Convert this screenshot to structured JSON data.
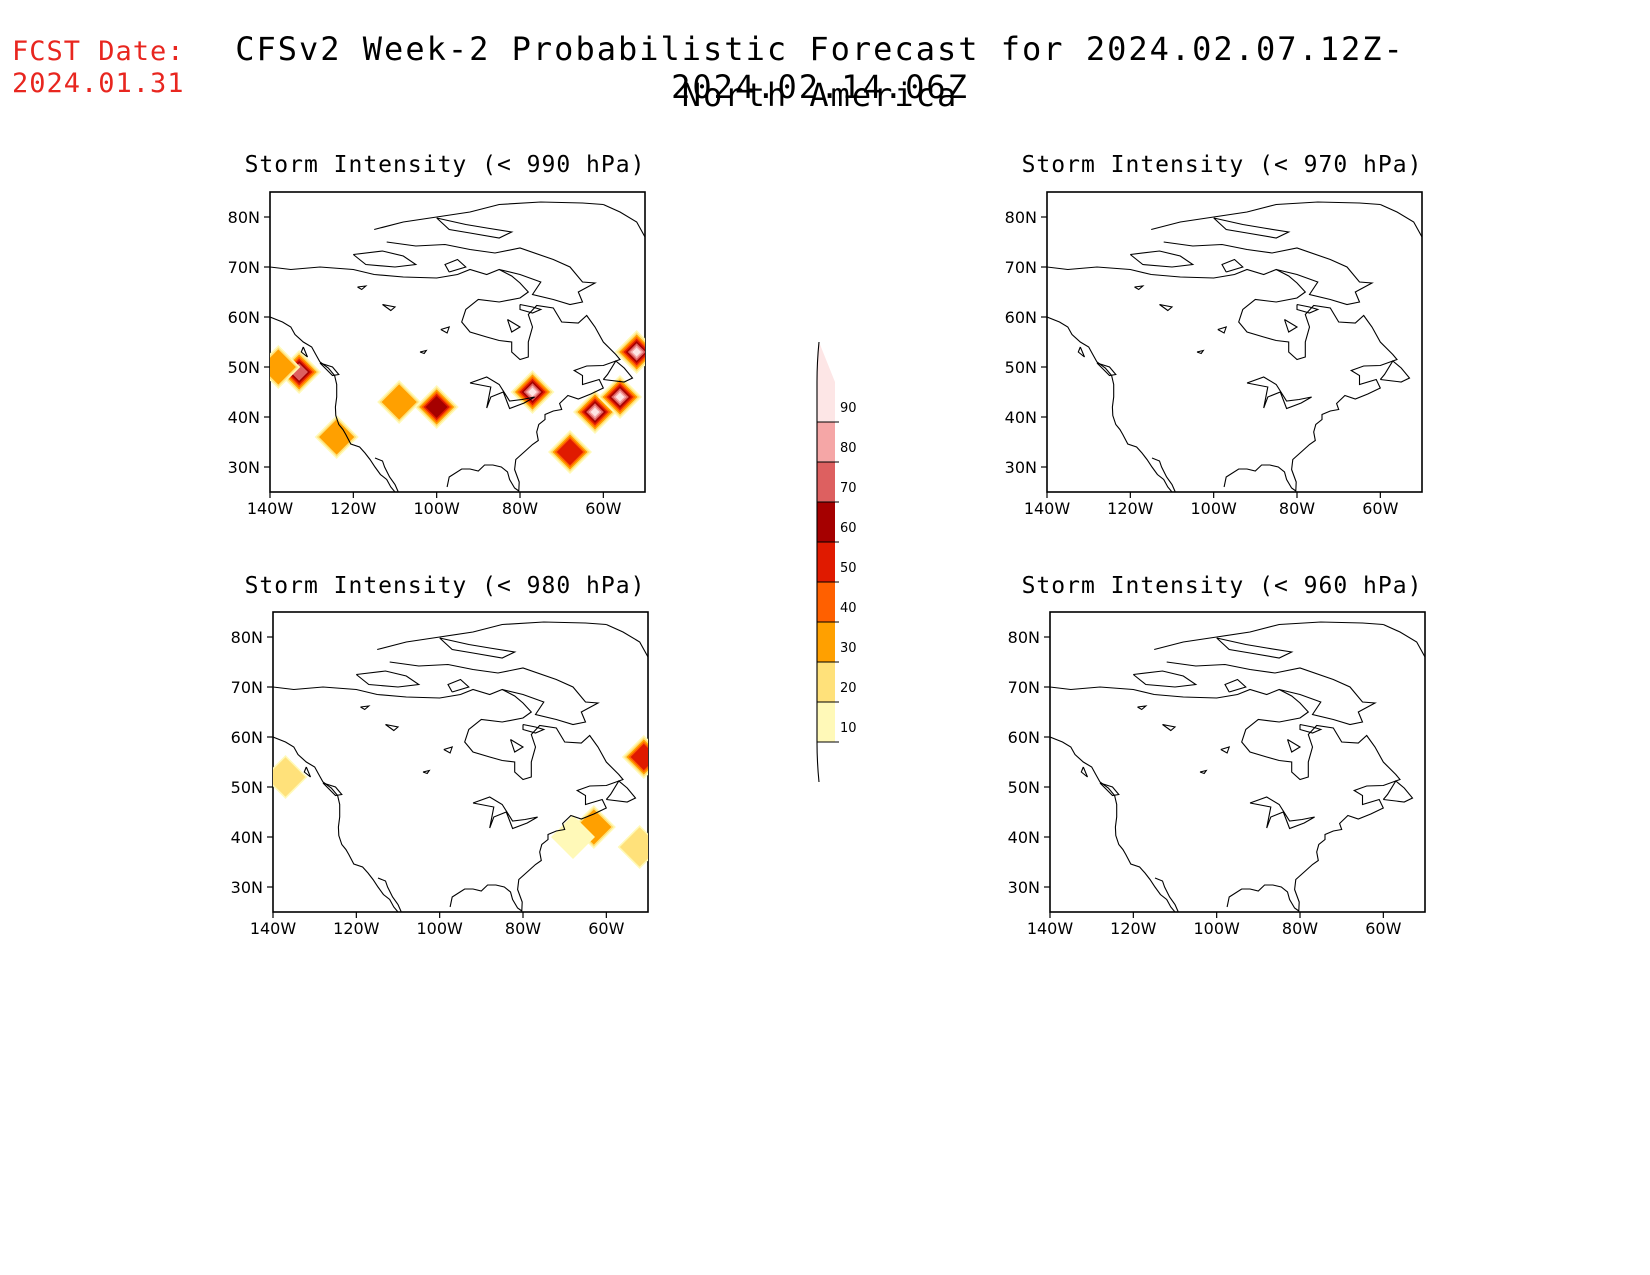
{
  "header": {
    "fcst_date_label": "FCST Date:",
    "fcst_date_value": "2024.01.31",
    "title": "CFSv2 Week-2 Probabilistic Forecast for 2024.02.07.12Z-2024.02.14.06Z",
    "subtitle": "North America"
  },
  "axes": {
    "lat_labels": [
      "80N",
      "70N",
      "60N",
      "50N",
      "40N",
      "30N"
    ],
    "lon_labels": [
      "140W",
      "120W",
      "100W",
      "80W",
      "60W"
    ]
  },
  "panels": [
    {
      "id": "p990",
      "title": "Storm Intensity (< 990 hPa)"
    },
    {
      "id": "p970",
      "title": "Storm Intensity (< 970 hPa)"
    },
    {
      "id": "p980",
      "title": "Storm Intensity (< 980 hPa)"
    },
    {
      "id": "p960",
      "title": "Storm Intensity (< 960 hPa)"
    }
  ],
  "colorbar": {
    "levels": [
      "10",
      "20",
      "30",
      "40",
      "50",
      "60",
      "70",
      "80",
      "90"
    ],
    "colors": [
      "#fff9b8",
      "#ffe17a",
      "#ffa000",
      "#ff6000",
      "#e01a00",
      "#a50000",
      "#dd6060",
      "#f5a6a6",
      "#fde6e6"
    ]
  },
  "shading": {
    "p990": [
      {
        "lon": -133,
        "lat": 49,
        "level": 70
      },
      {
        "lon": -138,
        "lat": 50,
        "level": 30
      },
      {
        "lon": -124,
        "lat": 36,
        "level": 30
      },
      {
        "lon": -109,
        "lat": 43,
        "level": 30
      },
      {
        "lon": -100,
        "lat": 42,
        "level": 60
      },
      {
        "lon": -77,
        "lat": 45,
        "level": 90
      },
      {
        "lon": -62,
        "lat": 41,
        "level": 90
      },
      {
        "lon": -56,
        "lat": 44,
        "level": 90
      },
      {
        "lon": -52,
        "lat": 53,
        "level": 90
      },
      {
        "lon": -68,
        "lat": 33,
        "level": 50
      }
    ],
    "p980": [
      {
        "lon": -137,
        "lat": 52,
        "level": 20
      },
      {
        "lon": -63,
        "lat": 42,
        "level": 30
      },
      {
        "lon": -68,
        "lat": 40,
        "level": 10
      },
      {
        "lon": -51,
        "lat": 56,
        "level": 50
      },
      {
        "lon": -52,
        "lat": 38,
        "level": 20
      }
    ],
    "p970": [],
    "p960": []
  }
}
